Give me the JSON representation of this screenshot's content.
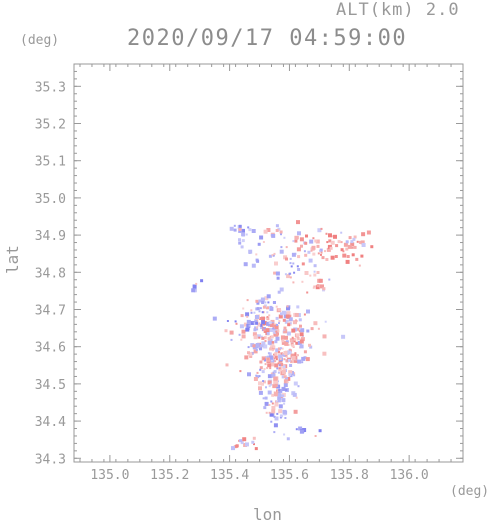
{
  "header": {
    "alt_label": "ALT(km)  2.0",
    "datetime": "2020/09/17 04:59:00",
    "y_unit": "(deg)",
    "x_unit": "(deg)"
  },
  "chart_data": {
    "type": "scatter",
    "xlabel": "lon",
    "ylabel": "lat",
    "xlim": [
      134.88,
      136.18
    ],
    "ylim": [
      34.29,
      35.36
    ],
    "xticks": [
      135.0,
      135.2,
      135.4,
      135.6,
      135.8,
      136.0
    ],
    "xtick_labels": [
      "135.0",
      "135.2",
      "135.4",
      "135.6",
      "135.8",
      "136.0"
    ],
    "yticks": [
      34.3,
      34.4,
      34.5,
      34.6,
      34.7,
      34.8,
      34.9,
      35.0,
      35.1,
      35.2,
      35.3
    ],
    "ytick_labels": [
      "34.3",
      "34.4",
      "34.5",
      "34.6",
      "34.7",
      "34.8",
      "34.9",
      "35.0",
      "35.1",
      "35.2",
      "35.3"
    ],
    "colors": {
      "positive": "#f08080",
      "negative": "#8080f0",
      "axis": "#999999"
    },
    "clusters": [
      {
        "x": 135.44,
        "y": 34.91,
        "sx": 0.02,
        "sy": 0.012,
        "n": 18,
        "v": -0.4
      },
      {
        "x": 135.55,
        "y": 34.91,
        "sx": 0.015,
        "sy": 0.01,
        "n": 10,
        "v": 0.1
      },
      {
        "x": 135.66,
        "y": 34.86,
        "sx": 0.05,
        "sy": 0.03,
        "n": 55,
        "v": 0.3
      },
      {
        "x": 135.79,
        "y": 34.87,
        "sx": 0.05,
        "sy": 0.025,
        "n": 40,
        "v": 0.5
      },
      {
        "x": 135.6,
        "y": 34.8,
        "sx": 0.025,
        "sy": 0.02,
        "n": 18,
        "v": -0.2
      },
      {
        "x": 135.7,
        "y": 34.76,
        "sx": 0.02,
        "sy": 0.02,
        "n": 14,
        "v": 0.4
      },
      {
        "x": 135.29,
        "y": 34.76,
        "sx": 0.008,
        "sy": 0.01,
        "n": 6,
        "v": -0.5
      },
      {
        "x": 135.53,
        "y": 34.7,
        "sx": 0.04,
        "sy": 0.02,
        "n": 40,
        "v": -0.2
      },
      {
        "x": 135.55,
        "y": 34.64,
        "sx": 0.07,
        "sy": 0.035,
        "n": 180,
        "v": 0.2
      },
      {
        "x": 135.56,
        "y": 34.57,
        "sx": 0.05,
        "sy": 0.03,
        "n": 120,
        "v": 0.1
      },
      {
        "x": 135.56,
        "y": 34.49,
        "sx": 0.03,
        "sy": 0.03,
        "n": 80,
        "v": 0.0
      },
      {
        "x": 135.55,
        "y": 34.42,
        "sx": 0.02,
        "sy": 0.015,
        "n": 20,
        "v": -0.4
      },
      {
        "x": 135.45,
        "y": 34.34,
        "sx": 0.03,
        "sy": 0.01,
        "n": 14,
        "v": 0.4
      },
      {
        "x": 135.62,
        "y": 34.37,
        "sx": 0.04,
        "sy": 0.008,
        "n": 10,
        "v": -0.3
      },
      {
        "x": 135.5,
        "y": 34.86,
        "sx": 0.03,
        "sy": 0.02,
        "n": 14,
        "v": -0.1
      },
      {
        "x": 135.48,
        "y": 34.66,
        "sx": 0.02,
        "sy": 0.02,
        "n": 25,
        "v": -0.5
      }
    ]
  }
}
